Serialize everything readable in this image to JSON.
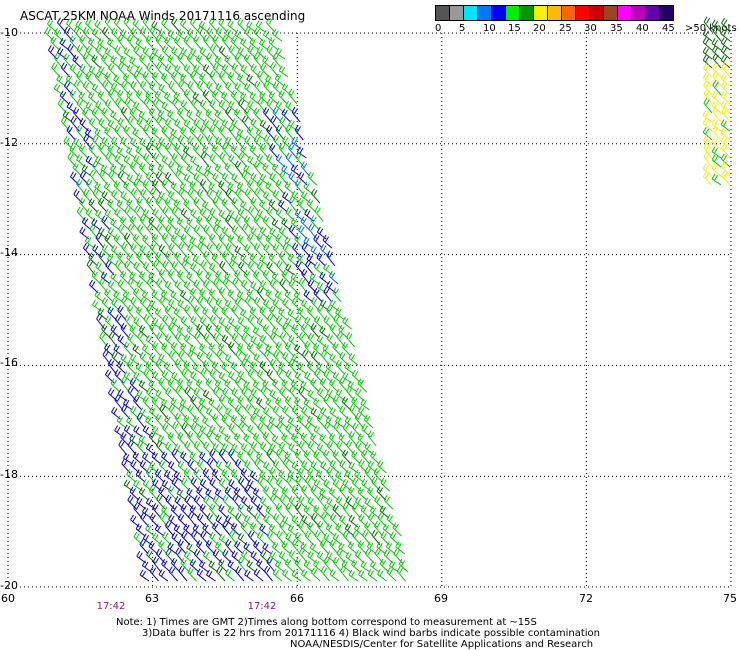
{
  "title": "ASCAT 25KM NOAA Winds 20171116 ascending",
  "scale": {
    "colors": [
      "#555555",
      "#999999",
      "#00e5ff",
      "#0077ff",
      "#0000ff",
      "#00ee00",
      "#009900",
      "#ffee00",
      "#ffbb00",
      "#ff6600",
      "#ff0000",
      "#cc0000",
      "#994422",
      "#ff00ff",
      "#bb00bb",
      "#6600aa",
      "#220066"
    ],
    "labels": [
      "0",
      "5",
      "10",
      "15",
      "20",
      "25",
      "30",
      "35",
      "40",
      "45",
      ">50 knots"
    ]
  },
  "axes": {
    "lat_labels": [
      "-10",
      "-12",
      "-14",
      "-16",
      "-18",
      "-20"
    ],
    "lon_labels": [
      "60",
      "63",
      "66",
      "69",
      "72",
      "75"
    ],
    "time_labels": [
      "17:42",
      "17:42"
    ]
  },
  "notes": {
    "line1": "Note: 1) Times are GMT 2)Times along bottom correspond to measurement at ~15S",
    "line2": "3)Data buffer is 22 hrs from 20171116 4) Black wind barbs indicate possible contamination",
    "line3": "NOAA/NESDIS/Center for Satellite Applications and Research"
  },
  "legend_colors": {
    "low_wind": "#0000cc",
    "mid_wind": "#00cc00",
    "dark_green": "#006600",
    "mid_blue": "#0066ff",
    "high_wind": "#ffee00"
  }
}
